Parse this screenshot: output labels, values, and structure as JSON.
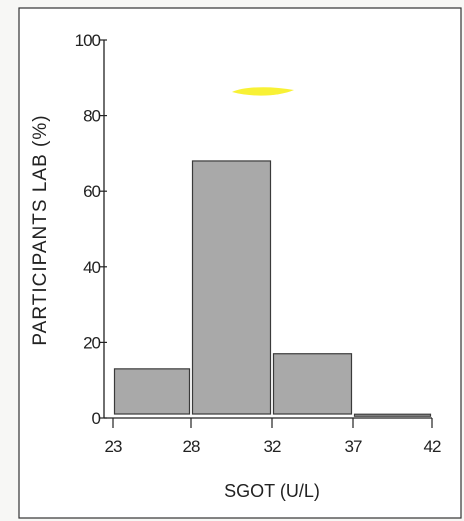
{
  "chart_data": {
    "type": "bar",
    "xlabel": "SGOT (U/L)",
    "ylabel": "PARTICIPANTS LAB (%)",
    "x_ticks": [
      "23",
      "28",
      "32",
      "37",
      "42"
    ],
    "y_ticks": [
      "0",
      "20",
      "40",
      "60",
      "80",
      "100"
    ],
    "ylim": [
      0,
      100
    ],
    "bins": [
      {
        "from": "23",
        "to": "28",
        "value": 13
      },
      {
        "from": "28",
        "to": "32",
        "value": 68
      },
      {
        "from": "32",
        "to": "37",
        "value": 17
      },
      {
        "from": "37",
        "to": "42",
        "value": 1
      }
    ],
    "colors": {
      "bar_fill": "#a9a9a9",
      "bar_stroke": "#3a3a3a",
      "highlight_mark": "#f7ef1f"
    },
    "grid": false
  }
}
